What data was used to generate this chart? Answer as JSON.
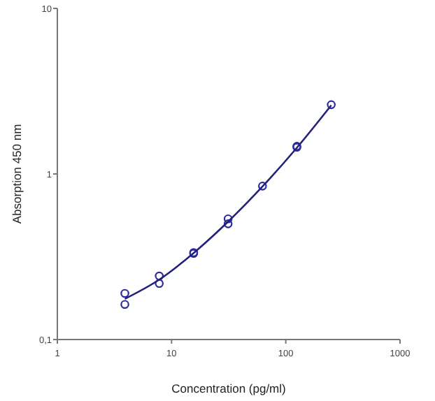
{
  "chart_data": {
    "type": "scatter",
    "xlabel": "Concentration (pg/ml)",
    "ylabel": "Absorption 450 nm",
    "log": "xy",
    "xlim": [
      1,
      1000
    ],
    "ylim": [
      0.1,
      10
    ],
    "xticks": [
      1,
      10,
      100,
      1000
    ],
    "yticks": [
      {
        "value": 0.1,
        "label": "0,1"
      },
      1,
      10
    ],
    "grid": false,
    "series": [
      {
        "color": "#2b2b9e",
        "marker": "circle",
        "x": [
          3.9,
          3.9,
          7.8,
          7.8,
          15.6,
          15.6,
          31.25,
          31.25,
          62.5,
          125,
          125,
          250
        ],
        "values": [
          0.19,
          0.163,
          0.242,
          0.218,
          0.335,
          0.331,
          0.536,
          0.5,
          0.845,
          1.47,
          1.45,
          2.62
        ]
      },
      {
        "type": "line",
        "color": "#22227a",
        "line_style": "solid",
        "x": [
          3.9,
          7.8,
          15.6,
          31.25,
          62.5,
          125,
          250
        ],
        "values": [
          0.176,
          0.23,
          0.333,
          0.515,
          0.84,
          1.44,
          2.6
        ]
      }
    ]
  }
}
